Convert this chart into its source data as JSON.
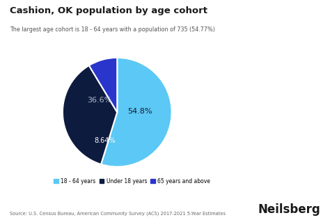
{
  "title": "Cashion, OK population by age cohort",
  "subtitle": "The largest age cohort is 18 - 64 years with a population of 735 (54.77%)",
  "slices": [
    54.8,
    36.6,
    8.64
  ],
  "labels": [
    "18 - 64 years",
    "Under 18 years",
    "65 years and above"
  ],
  "colors": [
    "#5bc8f5",
    "#0d1b3e",
    "#2a35cc"
  ],
  "pct_labels": [
    "54.8%",
    "36.6%",
    "8.64%"
  ],
  "legend_colors": [
    "#5bc8f5",
    "#0d1b3e",
    "#2a35cc"
  ],
  "source_text": "Source: U.S. Census Bureau, American Community Survey (ACS) 2017-2021 5-Year Estimates",
  "brand": "Neilsberg",
  "background_color": "#ffffff",
  "startangle": 90
}
